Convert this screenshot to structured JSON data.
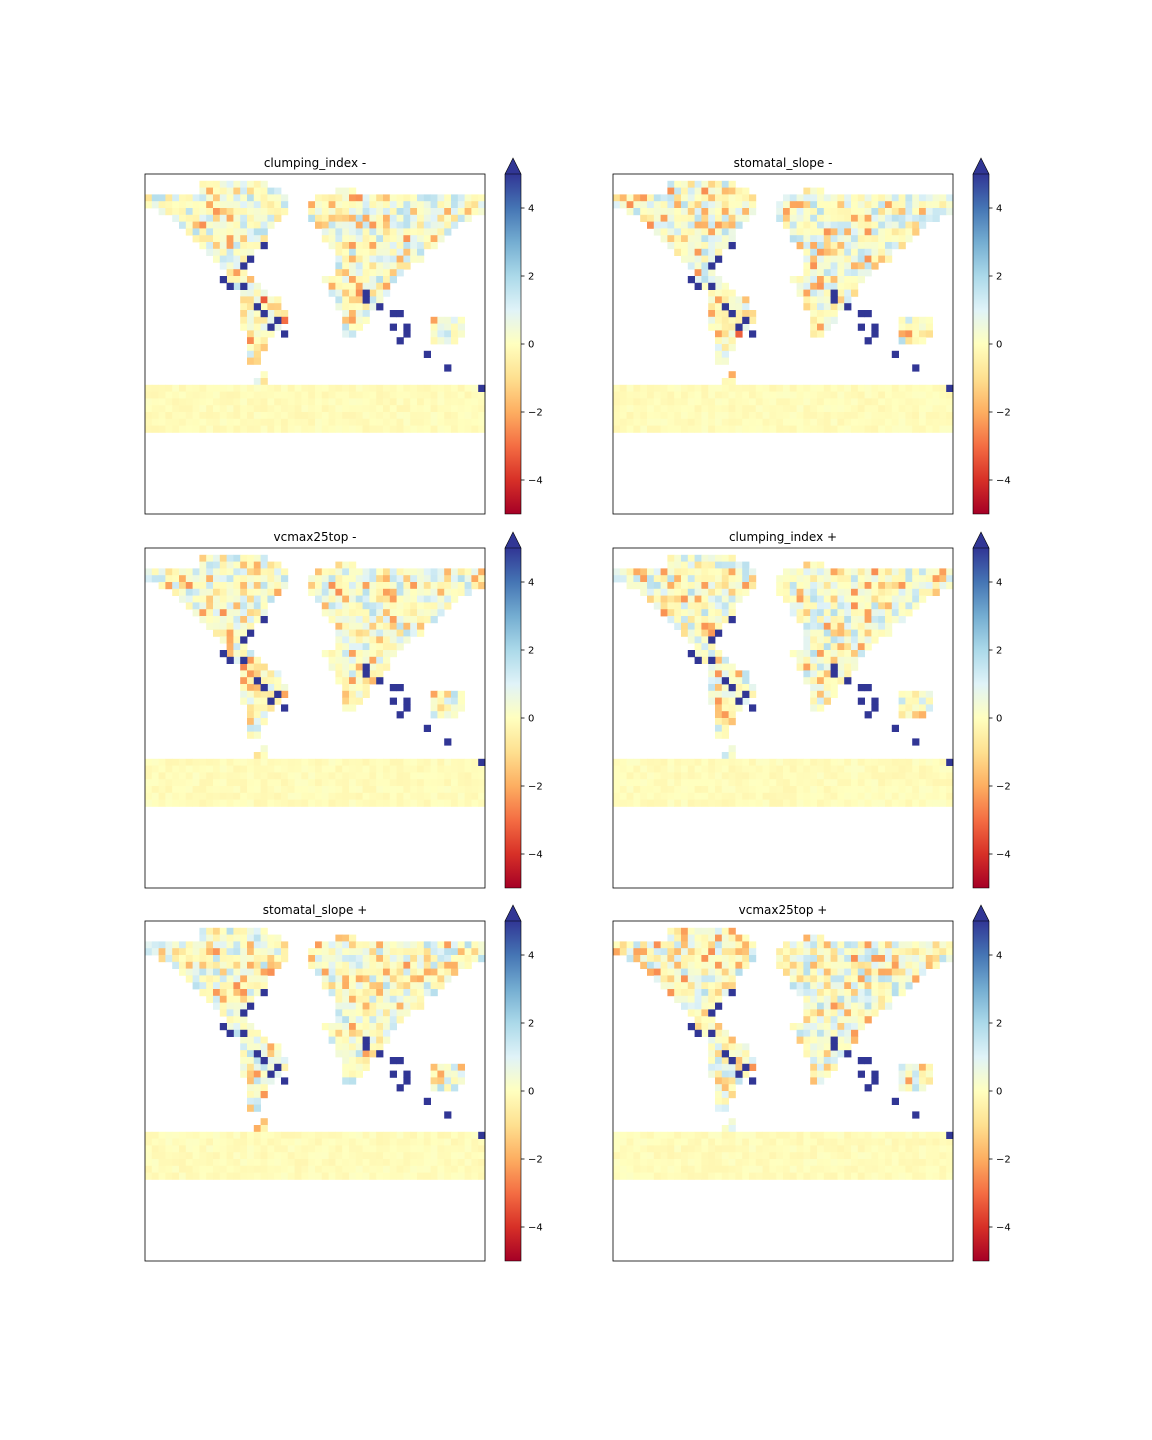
{
  "chart_data": [
    {
      "type": "heatmap",
      "title": "clumping_index -",
      "colorbar": {
        "ticks": [
          4,
          2,
          0,
          -2,
          -4
        ],
        "tick_labels": [
          "4",
          "2",
          "0",
          "−2",
          "−4"
        ],
        "range": [
          -5,
          5
        ],
        "extend": "max",
        "colormap": "RdYlBu"
      }
    },
    {
      "type": "heatmap",
      "title": "stomatal_slope -",
      "colorbar": {
        "ticks": [
          4,
          2,
          0,
          -2,
          -4
        ],
        "tick_labels": [
          "4",
          "2",
          "0",
          "−2",
          "−4"
        ],
        "range": [
          -5,
          5
        ],
        "extend": "max",
        "colormap": "RdYlBu"
      }
    },
    {
      "type": "heatmap",
      "title": "vcmax25top -",
      "colorbar": {
        "ticks": [
          4,
          2,
          0,
          -2,
          -4
        ],
        "tick_labels": [
          "4",
          "2",
          "0",
          "−2",
          "−4"
        ],
        "range": [
          -5,
          5
        ],
        "extend": "max",
        "colormap": "RdYlBu"
      }
    },
    {
      "type": "heatmap",
      "title": "clumping_index +",
      "colorbar": {
        "ticks": [
          4,
          2,
          0,
          -2,
          -4
        ],
        "tick_labels": [
          "4",
          "2",
          "0",
          "−2",
          "−4"
        ],
        "range": [
          -5,
          5
        ],
        "extend": "max",
        "colormap": "RdYlBu"
      }
    },
    {
      "type": "heatmap",
      "title": "stomatal_slope +",
      "colorbar": {
        "ticks": [
          4,
          2,
          0,
          -2,
          -4
        ],
        "tick_labels": [
          "4",
          "2",
          "0",
          "−2",
          "−4"
        ],
        "range": [
          -5,
          5
        ],
        "extend": "max",
        "colormap": "RdYlBu"
      }
    },
    {
      "type": "heatmap",
      "title": "vcmax25top +",
      "colorbar": {
        "ticks": [
          4,
          2,
          0,
          -2,
          -4
        ],
        "tick_labels": [
          "4",
          "2",
          "0",
          "−2",
          "−4"
        ],
        "range": [
          -5,
          5
        ],
        "extend": "max",
        "colormap": "RdYlBu"
      }
    }
  ],
  "colors": {
    "land_neutral": "#ffffbf",
    "colormap_stops": [
      "#a50026",
      "#d73027",
      "#f46d43",
      "#fdae61",
      "#fee090",
      "#ffffbf",
      "#e0f3f8",
      "#abd9e9",
      "#74add1",
      "#4575b4",
      "#313695"
    ]
  }
}
